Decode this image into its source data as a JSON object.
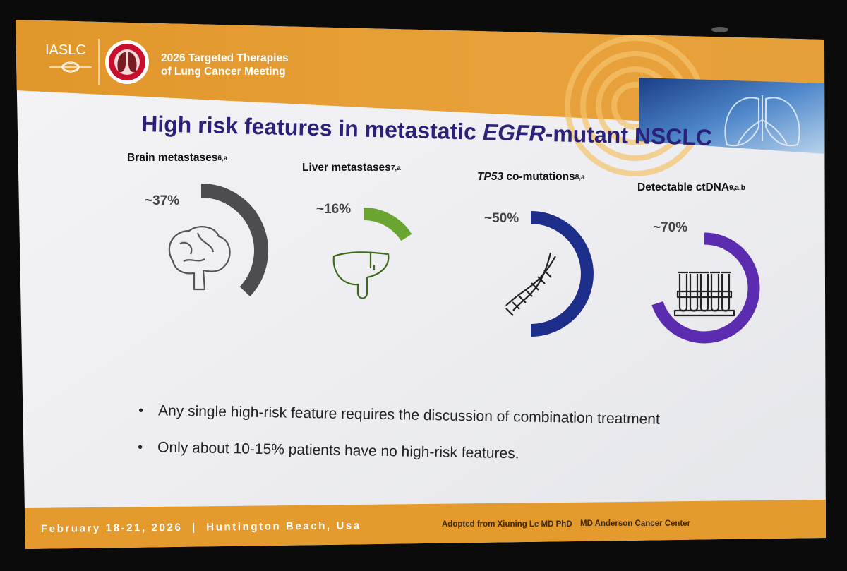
{
  "header": {
    "org": "IASLC",
    "meeting_line1": "2026 Targeted Therapies",
    "meeting_line2": "of Lung Cancer Meeting"
  },
  "slide": {
    "title_part1": "High risk features in metastatic ",
    "title_italic": "EGFR",
    "title_part2": "-mutant NSCLC"
  },
  "features": [
    {
      "name": "Brain metastases",
      "italic": false,
      "sup": "6,a",
      "label": "~37%",
      "percent": 37,
      "color": "#4d4d4f",
      "icon": "brain-icon"
    },
    {
      "name": "Liver metastases",
      "italic": false,
      "sup": "7,a",
      "label": "~16%",
      "percent": 16,
      "color": "#6aa532",
      "icon": "liver-icon"
    },
    {
      "name": "TP53",
      "name_suffix": " co-mutations",
      "italic": true,
      "sup": "8,a",
      "label": "~50%",
      "percent": 50,
      "color": "#1d2e8a",
      "icon": "dna-icon"
    },
    {
      "name": "Detectable ctDNA",
      "italic": false,
      "sup": "9,a,b",
      "label": "~70%",
      "percent": 70,
      "color": "#5b2bb0",
      "icon": "test-tubes-icon"
    }
  ],
  "bullets": [
    "Any single high-risk feature requires the discussion of combination treatment",
    "Only about 10-15% patients have no high-risk features."
  ],
  "footer": {
    "date_location": "February 18-21, 2026  |  Huntington Beach, Usa",
    "credit": "Adopted from Xiuning Le MD PhD",
    "institution": "MD Anderson Cancer Center"
  },
  "colors": {
    "banner": "#e49a2c",
    "title": "#2c2178",
    "slide_bg": "#f1f1f4"
  }
}
